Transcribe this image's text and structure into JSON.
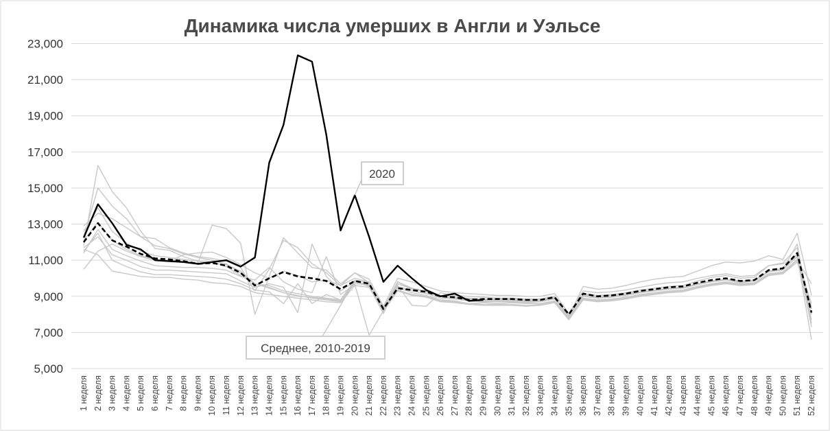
{
  "chart_data": {
    "type": "line",
    "title": "Динамика числа умерших в Англи и Уэльсе",
    "xlabel": "",
    "ylabel": "",
    "ylim": [
      5000,
      23000
    ],
    "yticks": [
      "5,000",
      "7,000",
      "9,000",
      "11,000",
      "13,000",
      "15,000",
      "17,000",
      "19,000",
      "21,000",
      "23,000"
    ],
    "ytick_values": [
      5000,
      7000,
      9000,
      11000,
      13000,
      15000,
      17000,
      19000,
      21000,
      23000
    ],
    "categories": [
      "1 неделя",
      "2 неделя",
      "3 неделя",
      "4 неделя",
      "5 неделя",
      "6 неделя",
      "7 неделя",
      "8 неделя",
      "9 неделя",
      "10 неделя",
      "11 неделя",
      "12 неделя",
      "13 неделя",
      "14 неделя",
      "15 неделя",
      "16 неделя",
      "17 неделя",
      "18 неделя",
      "19 неделя",
      "20 неделя",
      "21 неделя",
      "22 неделя",
      "23 неделя",
      "24 неделя",
      "25 неделя",
      "26 неделя",
      "27 неделя",
      "28 неделя",
      "29 неделя",
      "30 неделя",
      "31 неделя",
      "32 неделя",
      "33 неделя",
      "34 неделя",
      "35 неделя",
      "36 неделя",
      "37 неделя",
      "38 неделя",
      "39 неделя",
      "40 неделя",
      "41 неделя",
      "42 неделя",
      "43 неделя",
      "44 неделя",
      "45 неделя",
      "46 неделя",
      "47 неделя",
      "48 неделя",
      "49 неделя",
      "50 неделя",
      "51 неделя",
      "52 неделя"
    ],
    "grid": true,
    "legend": "none",
    "colors": {
      "series_2020": "#000000",
      "average": "#000000",
      "years": "#c8c8c8",
      "callout_border": "#bfbfbf"
    },
    "annotations": [
      {
        "text": "2020",
        "points_to": "20 неделя"
      },
      {
        "text": "Среднее, 2010-2019",
        "points_to": "20 неделя"
      }
    ],
    "series": [
      {
        "role": "2020",
        "style": "solid-black",
        "values": [
          12250,
          14100,
          13050,
          11850,
          11600,
          11000,
          10950,
          10900,
          10800,
          10900,
          11000,
          10650,
          11150,
          16400,
          18500,
          22350,
          22000,
          17950,
          12650,
          14600,
          12300,
          9800,
          10700,
          10000,
          9350,
          9000,
          9150,
          8750,
          8800,
          null,
          null,
          null,
          null,
          null,
          null,
          null,
          null,
          null,
          null,
          null,
          null,
          null,
          null,
          null,
          null,
          null,
          null,
          null,
          null,
          null,
          null,
          null
        ]
      },
      {
        "role": "average",
        "style": "dashed-black",
        "values": [
          12000,
          13050,
          12100,
          11750,
          11350,
          11100,
          11050,
          10950,
          10800,
          10850,
          10700,
          10300,
          9600,
          10000,
          10350,
          10100,
          10000,
          9850,
          9400,
          9850,
          9700,
          8300,
          9450,
          9350,
          9250,
          9000,
          8950,
          8800,
          8850,
          8850,
          8850,
          8800,
          8800,
          8950,
          8000,
          9150,
          9000,
          9050,
          9150,
          9300,
          9400,
          9500,
          9550,
          9750,
          9900,
          10000,
          9850,
          9900,
          10450,
          10550,
          11400,
          8100
        ]
      },
      {
        "role": "year",
        "style": "light-gray",
        "values": [
          11800,
          16250,
          14800,
          13900,
          12600,
          11650,
          11550,
          11200,
          10950,
          10900,
          10650,
          10150,
          9700,
          9450,
          9200,
          9000,
          8950,
          8850,
          8750,
          9850,
          9600,
          8050,
          9800,
          9450,
          9300,
          9050,
          8950,
          8850,
          8850,
          8800,
          8800,
          8750,
          8750,
          8950,
          7950,
          9100,
          9000,
          9050,
          9150,
          9250,
          9350,
          9450,
          9500,
          9700,
          9850,
          9950,
          9800,
          9850,
          10400,
          10550,
          11300,
          7300
        ]
      },
      {
        "role": "year",
        "style": "light-gray",
        "values": [
          12300,
          15000,
          14000,
          13300,
          12300,
          11800,
          11650,
          11350,
          11150,
          11000,
          10800,
          10300,
          9700,
          9500,
          9200,
          9050,
          8900,
          8800,
          8700,
          9800,
          9550,
          8050,
          9700,
          9400,
          9250,
          9000,
          8900,
          8800,
          8800,
          8750,
          8750,
          8750,
          8700,
          8900,
          7850,
          9050,
          8950,
          9000,
          9100,
          9200,
          9300,
          9400,
          9450,
          9650,
          9800,
          9900,
          9750,
          9850,
          10350,
          10500,
          11900,
          7500
        ]
      },
      {
        "role": "year",
        "style": "light-gray",
        "values": [
          10500,
          11500,
          11900,
          11500,
          11200,
          11000,
          10950,
          11300,
          11400,
          11450,
          11150,
          10750,
          10300,
          10000,
          10400,
          10150,
          9800,
          9900,
          9600,
          10300,
          9950,
          8450,
          10000,
          9800,
          9550,
          9300,
          9200,
          9150,
          9100,
          9050,
          9050,
          9000,
          9000,
          9150,
          8050,
          9300,
          9200,
          9250,
          9350,
          9500,
          9650,
          9750,
          9800,
          10000,
          10150,
          10250,
          10100,
          10150,
          10700,
          10800,
          11150,
          8300
        ]
      },
      {
        "role": "year",
        "style": "light-gray",
        "values": [
          12900,
          13600,
          13300,
          12800,
          12300,
          12200,
          11700,
          11400,
          11200,
          11100,
          10950,
          10600,
          9300,
          10500,
          12100,
          11700,
          10800,
          10300,
          9600,
          10000,
          9800,
          8300,
          9700,
          9450,
          9250,
          9000,
          8950,
          8900,
          8850,
          8850,
          8850,
          8800,
          8800,
          8950,
          7900,
          9150,
          9050,
          9100,
          9200,
          9350,
          9450,
          9550,
          9600,
          9850,
          10050,
          10150,
          10000,
          10050,
          10700,
          10850,
          11700,
          8000
        ]
      },
      {
        "role": "year",
        "style": "light-gray",
        "values": [
          12100,
          13100,
          12100,
          11600,
          11250,
          11050,
          11000,
          10900,
          10850,
          12950,
          12750,
          11950,
          8000,
          10100,
          12250,
          11400,
          10600,
          10450,
          9700,
          10300,
          9750,
          8350,
          9800,
          9450,
          9250,
          9000,
          8900,
          8800,
          8750,
          8700,
          8750,
          8700,
          8700,
          8850,
          7850,
          9050,
          8950,
          9000,
          9100,
          9250,
          9350,
          9450,
          9500,
          9700,
          9850,
          9950,
          9850,
          9900,
          10400,
          10500,
          11350,
          7700
        ]
      },
      {
        "role": "year",
        "style": "light-gray",
        "values": [
          11400,
          12700,
          11600,
          11250,
          10950,
          10700,
          10650,
          10600,
          10600,
          10550,
          10450,
          10100,
          9900,
          10600,
          9800,
          9400,
          9200,
          11200,
          9100,
          9650,
          6850,
          8200,
          9500,
          9200,
          9050,
          8800,
          8750,
          8600,
          8650,
          8600,
          8650,
          8600,
          8600,
          8750,
          7800,
          8900,
          8800,
          8850,
          8950,
          9100,
          9200,
          9300,
          9350,
          9550,
          9700,
          9800,
          9700,
          9750,
          10250,
          10350,
          11050,
          8600
        ]
      },
      {
        "role": "year",
        "style": "light-gray",
        "values": [
          11700,
          12300,
          11300,
          11000,
          10650,
          10450,
          10450,
          10400,
          10350,
          10300,
          10250,
          9850,
          9500,
          9700,
          9500,
          8100,
          11900,
          10100,
          9300,
          9800,
          9650,
          8400,
          9550,
          9300,
          9150,
          8900,
          8850,
          8750,
          8700,
          8700,
          8700,
          8650,
          8700,
          8850,
          7850,
          9000,
          8900,
          8950,
          9050,
          9200,
          9300,
          9400,
          9450,
          9650,
          9800,
          9900,
          9800,
          9850,
          10350,
          10450,
          11200,
          6600
        ]
      },
      {
        "role": "year",
        "style": "light-gray",
        "values": [
          11500,
          12500,
          11000,
          10650,
          10350,
          10200,
          10200,
          10150,
          10100,
          10050,
          9950,
          9700,
          9350,
          9250,
          8600,
          9700,
          8600,
          9100,
          8800,
          9700,
          9650,
          8300,
          9350,
          9100,
          9000,
          8750,
          8700,
          8600,
          8550,
          8550,
          8550,
          8500,
          8550,
          8700,
          7750,
          8850,
          8750,
          8800,
          8900,
          9050,
          9150,
          9250,
          9300,
          9500,
          9650,
          9750,
          9650,
          9700,
          10200,
          10300,
          11000,
          9700
        ]
      },
      {
        "role": "year",
        "style": "light-gray",
        "values": [
          11600,
          11300,
          10400,
          10250,
          10100,
          10050,
          10050,
          9950,
          9900,
          9750,
          9700,
          9550,
          9200,
          9100,
          9000,
          8900,
          8800,
          8700,
          8650,
          9600,
          9500,
          8150,
          9300,
          9050,
          8950,
          8700,
          8650,
          8550,
          8500,
          8500,
          8500,
          8450,
          8500,
          8650,
          7700,
          8800,
          8700,
          8750,
          8850,
          9000,
          9100,
          9200,
          9250,
          9450,
          9600,
          9700,
          9600,
          9650,
          10150,
          10250,
          10900,
          8400
        ]
      },
      {
        "role": "year",
        "style": "light-gray",
        "values": [
          12600,
          13900,
          12600,
          11950,
          11500,
          11250,
          11150,
          11050,
          10950,
          10850,
          10750,
          10400,
          9700,
          9600,
          9300,
          9150,
          9000,
          8900,
          8800,
          9900,
          9750,
          8200,
          9600,
          8500,
          8450,
          9200,
          9050,
          9000,
          8950,
          8900,
          8900,
          8850,
          8850,
          9000,
          7900,
          9550,
          9400,
          9450,
          9600,
          9800,
          9950,
          10050,
          10100,
          10400,
          10700,
          10900,
          10850,
          10950,
          11250,
          11050,
          12500,
          9050
        ]
      }
    ]
  }
}
